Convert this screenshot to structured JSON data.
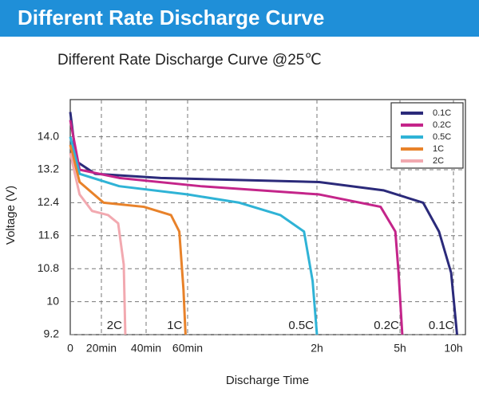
{
  "header": "Different Rate Discharge Curve",
  "chart_data": {
    "type": "line",
    "title": "Different Rate Discharge Curve @25℃",
    "x_label": "Discharge Time",
    "y_label": "Voltage (V)",
    "xlim": [
      0,
      660
    ],
    "xticks": [
      0,
      {
        "value": 20,
        "label": "20min"
      },
      {
        "value": 40,
        "label": "40min"
      },
      {
        "value": 60,
        "label": "60min"
      },
      {
        "value": 120,
        "label": "2h"
      },
      {
        "value": 300,
        "label": "5h"
      },
      {
        "value": 600,
        "label": "10h"
      }
    ],
    "ylim": [
      9.2,
      14.9
    ],
    "yticks": [
      9.2,
      10.0,
      {
        "value": 10.8,
        "label": "10.8"
      },
      11.6,
      12.4,
      13.2,
      {
        "value": 14.0,
        "label": "14.0"
      }
    ],
    "grid": true,
    "legend": "upper right",
    "series": [
      {
        "name": "0.1C",
        "end_label": "0.1C",
        "color": "#2b2a7a",
        "x": [
          0,
          4,
          16,
          47,
          125,
          264,
          430,
          519,
          587,
          618
        ],
        "values": [
          14.6,
          13.4,
          13.1,
          13.0,
          12.9,
          12.7,
          12.4,
          11.7,
          10.7,
          9.2
        ]
      },
      {
        "name": "0.2C",
        "end_label": "0.2C",
        "color": "#c4258a",
        "x": [
          0,
          6,
          28,
          66,
          125,
          258,
          290,
          297,
          313
        ],
        "values": [
          14.4,
          13.2,
          13.0,
          12.8,
          12.6,
          12.3,
          11.7,
          10.7,
          9.2
        ]
      },
      {
        "name": "0.5C",
        "end_label": "0.5C",
        "color": "#2fb3d6",
        "x": [
          0,
          6,
          28,
          60,
          84,
          103,
          114,
          118,
          120
        ],
        "values": [
          14.0,
          13.1,
          12.8,
          12.6,
          12.4,
          12.1,
          11.7,
          10.5,
          9.2
        ]
      },
      {
        "name": "1C",
        "end_label": "1C",
        "color": "#e8822a",
        "x": [
          0,
          6,
          21,
          39,
          52,
          56,
          58,
          59
        ],
        "values": [
          13.8,
          12.9,
          12.4,
          12.3,
          12.1,
          11.7,
          10.3,
          9.2
        ]
      },
      {
        "name": "2C",
        "end_label": "2C",
        "color": "#f2a9b0",
        "x": [
          0,
          6,
          14,
          23,
          27.5,
          30,
          30.7
        ],
        "values": [
          13.6,
          12.6,
          12.2,
          12.1,
          11.9,
          10.9,
          9.2
        ]
      }
    ]
  }
}
